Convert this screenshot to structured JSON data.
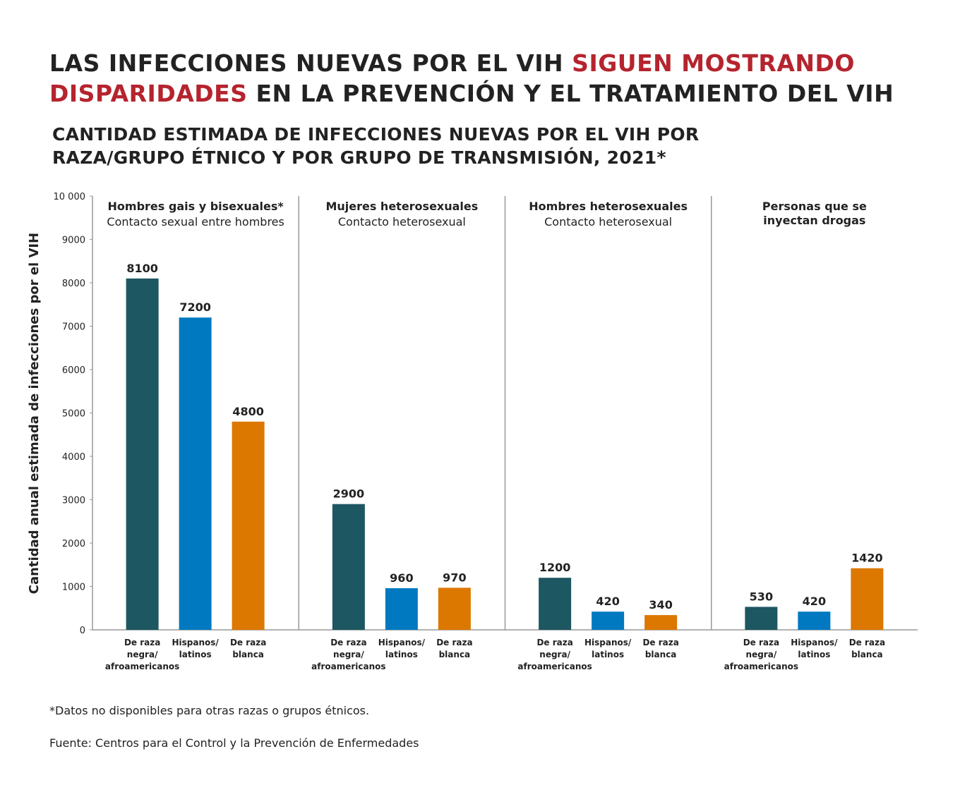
{
  "title": {
    "part1": "LAS INFECCIONES NUEVAS POR EL VIH ",
    "highlight1": "SIGUEN MOSTRANDO",
    "highlight2": "DISPARIDADES",
    "part2": " EN LA PREVENCIÓN Y EL TRATAMIENTO DEL VIH"
  },
  "subtitle": "CANTIDAD ESTIMADA DE INFECCIONES NUEVAS POR EL VIH POR RAZA/GRUPO ÉTNICO Y POR GRUPO DE TRANSMISIÓN, 2021*",
  "footnote": "*Datos no disponibles para otras razas o grupos étnicos.",
  "source": "Fuente: Centros para el Control y la Prevención de Enfermedades",
  "colors": {
    "black": "#1d5761",
    "hispanic": "#0079c1",
    "white": "#dc7700",
    "highlight": "#b5242e"
  },
  "chart_data": {
    "type": "bar",
    "ylabel": "Cantidad anual estimada de infecciones por el VIH",
    "ylim": [
      0,
      10000
    ],
    "yticks": [
      "0",
      "1000",
      "2000",
      "3000",
      "4000",
      "5000",
      "6000",
      "7000",
      "8000",
      "9000",
      "10 000"
    ],
    "categories": [
      "De raza negra/ afroamericanos",
      "Hispanos/ latinos",
      "De raza blanca"
    ],
    "category_lines": [
      [
        "De raza",
        "negra/",
        "afroamericanos"
      ],
      [
        "Hispanos/",
        "latinos"
      ],
      [
        "De raza",
        "blanca"
      ]
    ],
    "groups": [
      {
        "title": "Hombres gais y bisexuales*",
        "subtitle": "Contacto sexual entre hombres",
        "values": [
          8100,
          7200,
          4800
        ]
      },
      {
        "title": "Mujeres heterosexuales",
        "subtitle": "Contacto heterosexual",
        "values": [
          2900,
          960,
          970
        ]
      },
      {
        "title": "Hombres heterosexuales",
        "subtitle": "Contacto heterosexual",
        "values": [
          1200,
          420,
          340
        ]
      },
      {
        "title": "Personas que se inyectan drogas",
        "title_lines": [
          "Personas que se",
          "inyectan drogas"
        ],
        "subtitle": "",
        "values": [
          530,
          420,
          1420
        ]
      }
    ]
  }
}
